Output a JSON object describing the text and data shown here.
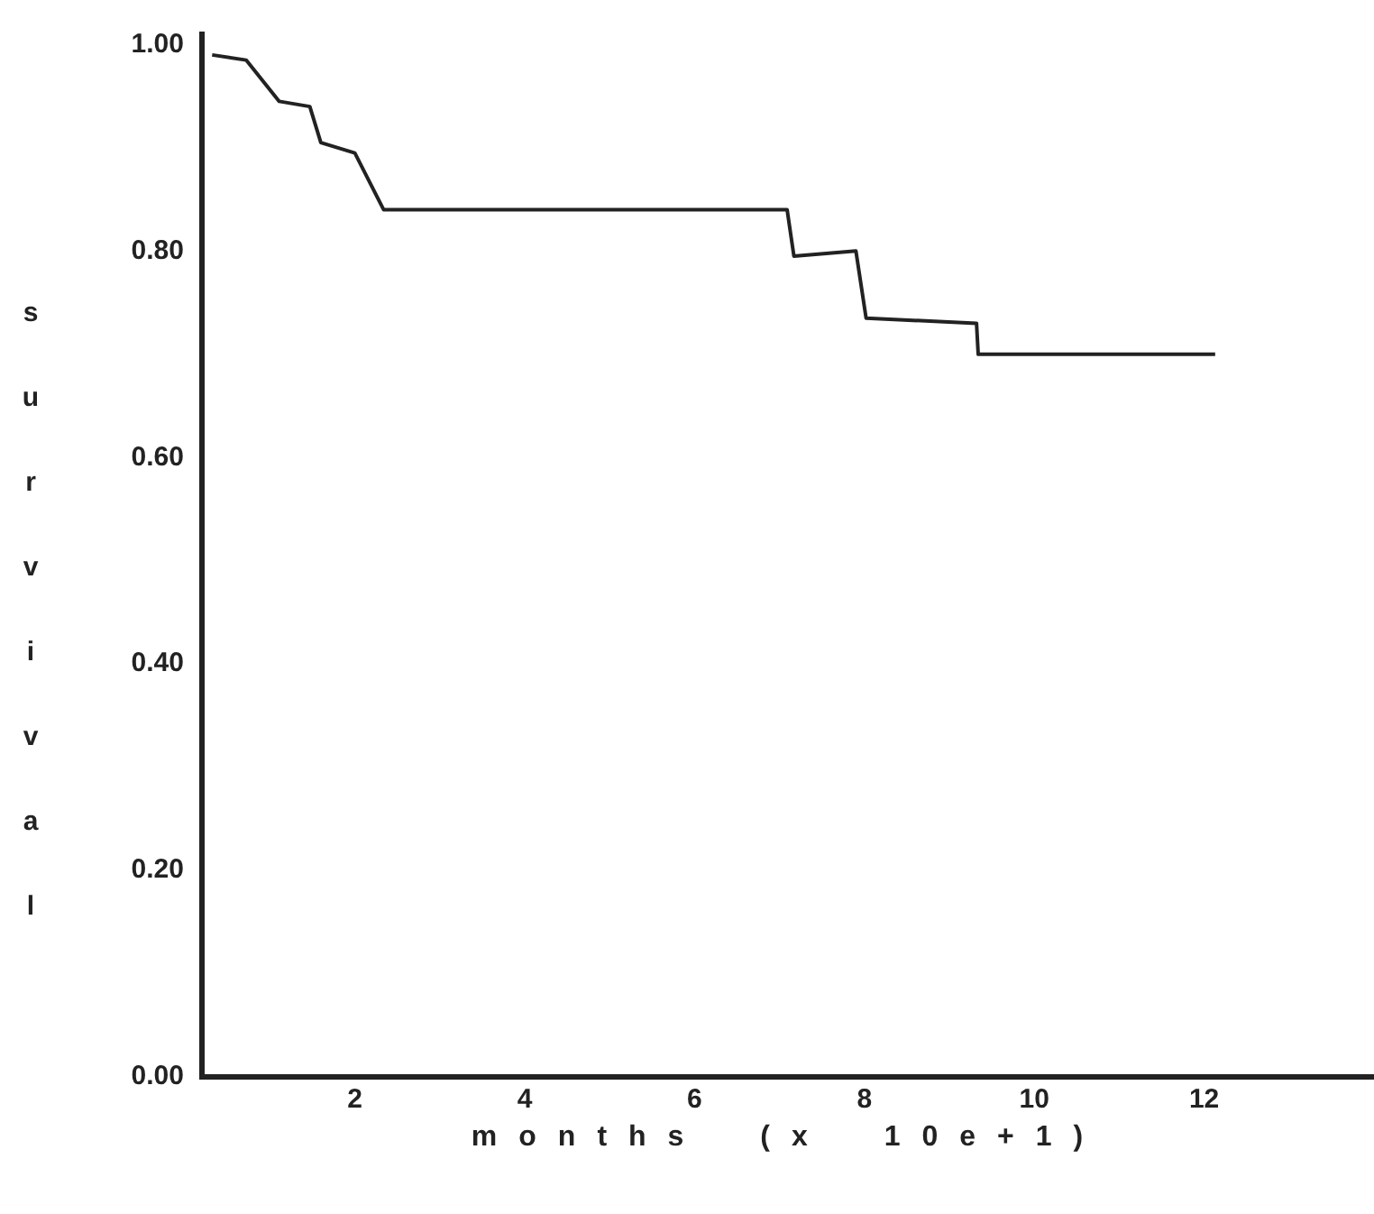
{
  "chart_data": {
    "type": "line",
    "xlabel": "months (x 10e+1)",
    "ylabel": "survival",
    "x": [
      0.32,
      0.72,
      1.11,
      1.47,
      1.6,
      2.0,
      2.34,
      7.09,
      7.17,
      7.9,
      8.02,
      9.32,
      9.34,
      12.13
    ],
    "values": [
      0.99,
      0.985,
      0.945,
      0.94,
      0.905,
      0.895,
      0.84,
      0.84,
      0.795,
      0.8,
      0.735,
      0.73,
      0.7,
      0.7
    ],
    "color": "#222222",
    "xlim": [
      0.2,
      14
    ],
    "xticks": [
      2,
      4,
      6,
      8,
      10,
      12
    ],
    "ylim": [
      0,
      1.01
    ],
    "yticks": [
      {
        "value": 0,
        "label": "0.00"
      },
      {
        "value": 0.2,
        "label": "0.20"
      },
      {
        "value": 0.4,
        "label": "0.40"
      },
      {
        "value": 0.6,
        "label": "0.60"
      },
      {
        "value": 0.8,
        "label": "0.80"
      },
      {
        "value": 1,
        "label": "1.00"
      }
    ],
    "grid": false,
    "legend": false,
    "marker": "none",
    "line_style": "solid"
  }
}
